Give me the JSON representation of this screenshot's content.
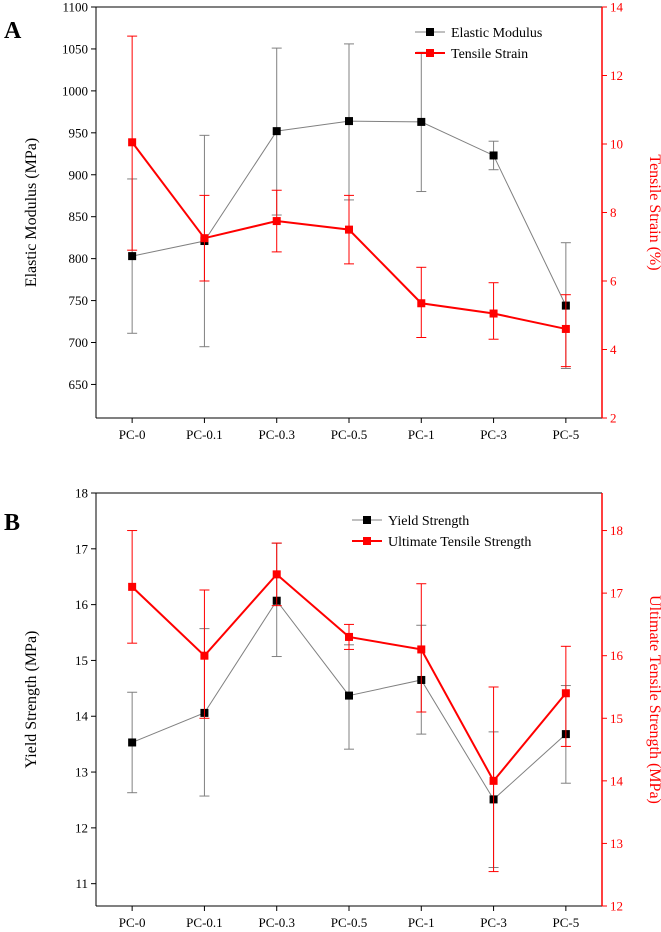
{
  "chart_data": [
    {
      "type": "line",
      "panel_label": "A",
      "categories": [
        "PC-0",
        "PC-0.1",
        "PC-0.3",
        "PC-0.5",
        "PC-1",
        "PC-3",
        "PC-5"
      ],
      "left_axis": {
        "label": "Elastic Modulus (MPa)",
        "range": [
          610,
          1100
        ],
        "ticks": [
          650,
          700,
          750,
          800,
          850,
          900,
          950,
          1000,
          1050,
          1100
        ],
        "color": "#000000"
      },
      "right_axis": {
        "label": "Tensile Strain (%)",
        "range": [
          2,
          14
        ],
        "ticks": [
          2,
          4,
          6,
          8,
          10,
          12,
          14
        ],
        "color": "#ff0000"
      },
      "series": [
        {
          "name": "Elastic Modulus",
          "axis": "left",
          "color": "#000000",
          "line_color": "#808080",
          "values": [
            803,
            821,
            952,
            964,
            963,
            923,
            744
          ],
          "error_low": [
            711,
            695,
            852,
            870,
            880,
            906,
            669
          ],
          "error_high": [
            895,
            947,
            1051,
            1056,
            1046,
            940,
            819
          ]
        },
        {
          "name": "Tensile Strain",
          "axis": "right",
          "color": "#ff0000",
          "line_color": "#ff0000",
          "values": [
            10.05,
            7.25,
            7.75,
            7.5,
            5.35,
            5.05,
            4.6
          ],
          "error_low": [
            6.9,
            6.0,
            6.85,
            6.5,
            4.35,
            4.3,
            3.5
          ],
          "error_high": [
            13.15,
            8.5,
            8.65,
            8.5,
            6.4,
            5.95,
            5.6
          ]
        }
      ],
      "legend_position": "top-right",
      "grid": false
    },
    {
      "type": "line",
      "panel_label": "B",
      "categories": [
        "PC-0",
        "PC-0.1",
        "PC-0.3",
        "PC-0.5",
        "PC-1",
        "PC-3",
        "PC-5"
      ],
      "left_axis": {
        "label": "Yield Strength (MPa)",
        "range": [
          10.6,
          18
        ],
        "ticks": [
          11,
          12,
          13,
          14,
          15,
          16,
          17,
          18
        ],
        "color": "#000000"
      },
      "right_axis": {
        "label": "Ultimate Tensile Strength (MPa)",
        "range": [
          12,
          18.6
        ],
        "ticks": [
          12,
          13,
          14,
          15,
          16,
          17,
          18
        ],
        "color": "#ff0000"
      },
      "series": [
        {
          "name": "Yield Strength",
          "axis": "left",
          "color": "#000000",
          "line_color": "#808080",
          "values": [
            13.53,
            14.06,
            16.07,
            14.37,
            14.65,
            12.51,
            13.68
          ],
          "error_low": [
            12.63,
            12.57,
            15.07,
            13.41,
            13.68,
            11.29,
            12.8
          ],
          "error_high": [
            14.43,
            15.57,
            17.1,
            15.28,
            15.63,
            13.72,
            14.55
          ]
        },
        {
          "name": "Ultimate Tensile Strength",
          "axis": "right",
          "color": "#ff0000",
          "line_color": "#ff0000",
          "values": [
            17.1,
            16.0,
            17.3,
            16.3,
            16.1,
            14.0,
            15.4
          ],
          "error_low": [
            16.2,
            15.0,
            16.8,
            16.1,
            15.1,
            12.55,
            14.55
          ],
          "error_high": [
            18.0,
            17.05,
            17.8,
            16.5,
            17.15,
            15.5,
            16.15
          ]
        }
      ],
      "legend_position": "top-right",
      "grid": false
    }
  ]
}
